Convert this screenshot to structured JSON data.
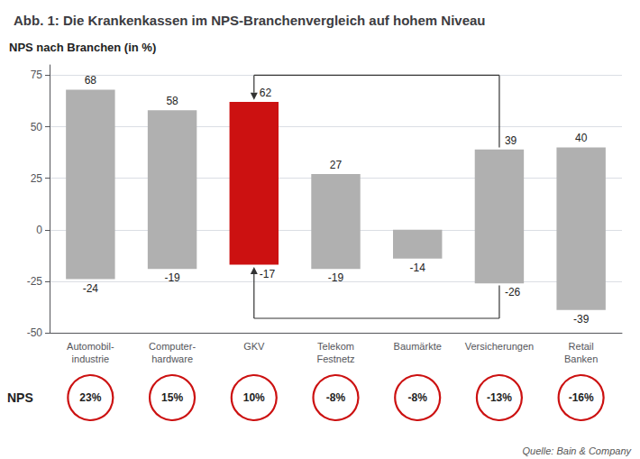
{
  "chart_data": {
    "type": "bar",
    "title": "Abb. 1: Die Krankenkassen im NPS-Branchenvergleich auf hohem Niveau",
    "ylabel": "NPS nach Branchen (in %)",
    "categories": [
      "Automobil-\nindustrie",
      "Computer-\nhardware",
      "GKV",
      "Telekom\nFestnetz",
      "Baumärkte",
      "Versicherungen",
      "Retail\nBanken"
    ],
    "values": [
      68,
      58,
      62,
      27,
      -14,
      39,
      40
    ],
    "bottom_values": [
      -24,
      -19,
      -17,
      -19,
      null,
      -26,
      -39
    ],
    "colors": [
      "#b0b0b0",
      "#b0b0b0",
      "#cc1111",
      "#b0b0b0",
      "#b0b0b0",
      "#b0b0b0",
      "#b0b0b0"
    ],
    "data_labels": true,
    "ylim": [
      -50,
      80
    ],
    "yticks": [
      -50,
      -25,
      0,
      25,
      50,
      75
    ],
    "grid": true,
    "brackets": [
      {
        "categories": [
          "GKV",
          "Versicherungen"
        ],
        "y": 75,
        "ends": [
          63,
          40
        ]
      },
      {
        "categories": [
          "GKV",
          "Versicherungen"
        ],
        "y": -43,
        "ends": [
          -18,
          -27
        ]
      }
    ],
    "nps": {
      "label": "NPS",
      "labels": [
        "23%",
        "15%",
        "10%",
        "-8%",
        "-8%",
        "-13%",
        "-16%"
      ],
      "color": "#cc1111"
    },
    "source": "Quelle: Bain & Company"
  }
}
